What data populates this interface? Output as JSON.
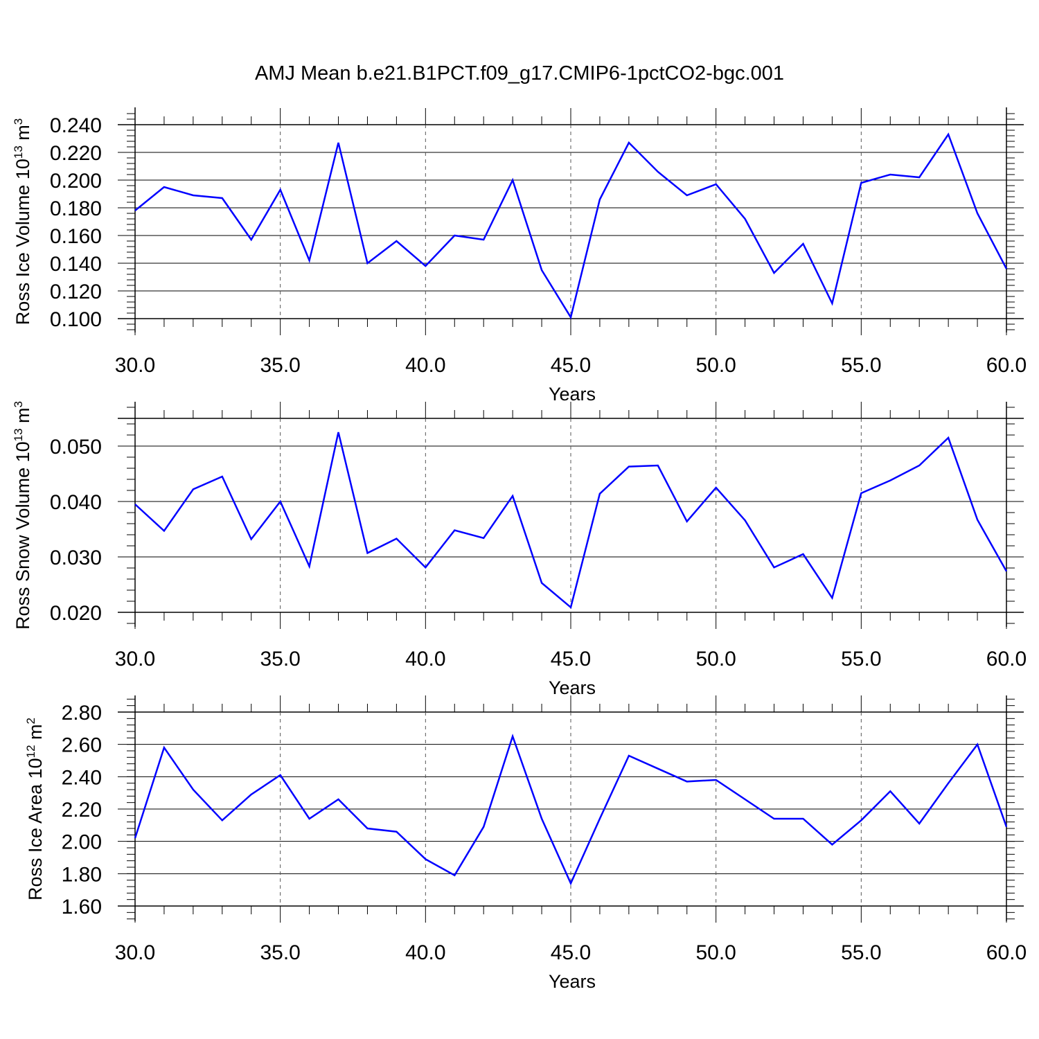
{
  "title": "AMJ Mean b.e21.B1PCT.f09_g17.CMIP6-1pctCO2-bgc.001",
  "chart_data": [
    {
      "type": "line",
      "xlabel": "Years",
      "ylabel": "Ross Ice Volume 10",
      "ylabel_sup": "13",
      "ylabel_unit": " m",
      "ylabel_unit_sup": "3",
      "xlim": [
        30,
        60
      ],
      "ylim": [
        0.1,
        0.24
      ],
      "xticks": [
        "30.0",
        "35.0",
        "40.0",
        "45.0",
        "50.0",
        "55.0",
        "60.0"
      ],
      "yticks": [
        "0.100",
        "0.120",
        "0.140",
        "0.160",
        "0.180",
        "0.200",
        "0.220",
        "0.240"
      ],
      "grid": "vertical dashed at major x ticks",
      "line_color": "#0000ff",
      "x": [
        30,
        31,
        32,
        33,
        34,
        35,
        36,
        37,
        38,
        39,
        40,
        41,
        42,
        43,
        44,
        45,
        46,
        47,
        48,
        49,
        50,
        51,
        52,
        53,
        54,
        55,
        56,
        57,
        58,
        59,
        60
      ],
      "values": [
        0.178,
        0.195,
        0.189,
        0.187,
        0.157,
        0.193,
        0.142,
        0.227,
        0.14,
        0.156,
        0.138,
        0.16,
        0.157,
        0.2,
        0.135,
        0.101,
        0.186,
        0.227,
        0.206,
        0.189,
        0.197,
        0.172,
        0.133,
        0.154,
        0.111,
        0.198,
        0.204,
        0.202,
        0.233,
        0.176,
        0.136
      ]
    },
    {
      "type": "line",
      "xlabel": "Years",
      "ylabel": "Ross Snow Volume 10",
      "ylabel_sup": "13",
      "ylabel_unit": " m",
      "ylabel_unit_sup": "3",
      "xlim": [
        30,
        60
      ],
      "ylim": [
        0.02,
        0.055
      ],
      "xticks": [
        "30.0",
        "35.0",
        "40.0",
        "45.0",
        "50.0",
        "55.0",
        "60.0"
      ],
      "yticks": [
        "0.020",
        "0.030",
        "0.040",
        "0.050"
      ],
      "grid": "vertical dashed at major x ticks",
      "line_color": "#0000ff",
      "x": [
        30,
        31,
        32,
        33,
        34,
        35,
        36,
        37,
        38,
        39,
        40,
        41,
        42,
        43,
        44,
        45,
        46,
        47,
        48,
        49,
        50,
        51,
        52,
        53,
        54,
        55,
        56,
        57,
        58,
        59,
        60
      ],
      "values": [
        0.0395,
        0.0347,
        0.0422,
        0.0445,
        0.0332,
        0.04,
        0.0283,
        0.0525,
        0.0307,
        0.0333,
        0.0281,
        0.0348,
        0.0334,
        0.041,
        0.0253,
        0.0209,
        0.0414,
        0.0463,
        0.0465,
        0.0364,
        0.0425,
        0.0366,
        0.0281,
        0.0305,
        0.0226,
        0.0415,
        0.0438,
        0.0465,
        0.0515,
        0.0367,
        0.0274
      ]
    },
    {
      "type": "line",
      "xlabel": "Years",
      "ylabel": "Ross Ice Area 10",
      "ylabel_sup": "12",
      "ylabel_unit": " m",
      "ylabel_unit_sup": "2",
      "xlim": [
        30,
        60
      ],
      "ylim": [
        1.6,
        2.8
      ],
      "xticks": [
        "30.0",
        "35.0",
        "40.0",
        "45.0",
        "50.0",
        "55.0",
        "60.0"
      ],
      "yticks": [
        "1.60",
        "1.80",
        "2.00",
        "2.20",
        "2.40",
        "2.60",
        "2.80"
      ],
      "grid": "vertical dashed at major x ticks",
      "line_color": "#0000ff",
      "x": [
        30,
        31,
        32,
        33,
        34,
        35,
        36,
        37,
        38,
        39,
        40,
        41,
        42,
        43,
        44,
        45,
        46,
        47,
        48,
        49,
        50,
        51,
        52,
        53,
        54,
        55,
        56,
        57,
        58,
        59,
        60
      ],
      "values": [
        2.02,
        2.58,
        2.32,
        2.13,
        2.29,
        2.41,
        2.14,
        2.26,
        2.08,
        2.06,
        1.89,
        1.79,
        2.09,
        2.65,
        2.14,
        1.74,
        2.14,
        2.53,
        2.45,
        2.37,
        2.38,
        2.26,
        2.14,
        2.14,
        1.98,
        2.13,
        2.31,
        2.11,
        2.36,
        2.6,
        2.09
      ]
    }
  ]
}
